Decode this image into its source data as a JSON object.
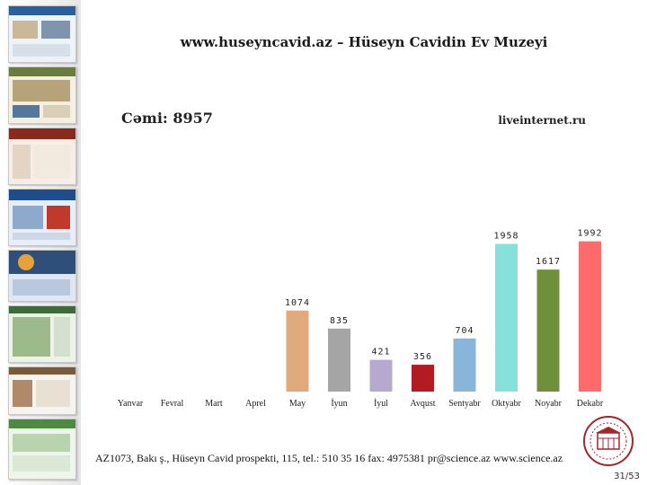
{
  "header": {
    "title": "www.huseyncavid.az – Hüseyn Cavidin Ev Muzeyi"
  },
  "summary": {
    "total": "Cəmi: 8957",
    "source": "liveinternet.ru"
  },
  "footer": {
    "address": "AZ1073, Bakı ş., Hüseyn Cavid prospekti, 115, tel.: 510 35 16 fax: 4975381 pr@science.az www.science.az"
  },
  "page": {
    "number": "31/53"
  },
  "chart_data": {
    "type": "bar",
    "categories": [
      "Yanvar",
      "Fevral",
      "Mart",
      "Aprel",
      "May",
      "İyun",
      "İyul",
      "Avqust",
      "Sentyabr",
      "Oktyabr",
      "Noyabr",
      "Dekabr"
    ],
    "values": [
      null,
      null,
      null,
      null,
      1074,
      835,
      421,
      356,
      704,
      1958,
      1617,
      1992
    ],
    "labels": [
      "",
      "",
      "",
      "",
      "1074",
      "835",
      "421",
      "356",
      "704",
      "1958",
      "1617",
      "1992"
    ],
    "colors": [
      "#cccccc",
      "#cccccc",
      "#cccccc",
      "#cccccc",
      "#e0aa7c",
      "#a5a5a5",
      "#b7a8cf",
      "#b31b23",
      "#88b5d9",
      "#86e0db",
      "#6f8f3a",
      "#ff6a6a"
    ],
    "ylim": [
      0,
      2000
    ],
    "grid": false,
    "legend": "none"
  }
}
